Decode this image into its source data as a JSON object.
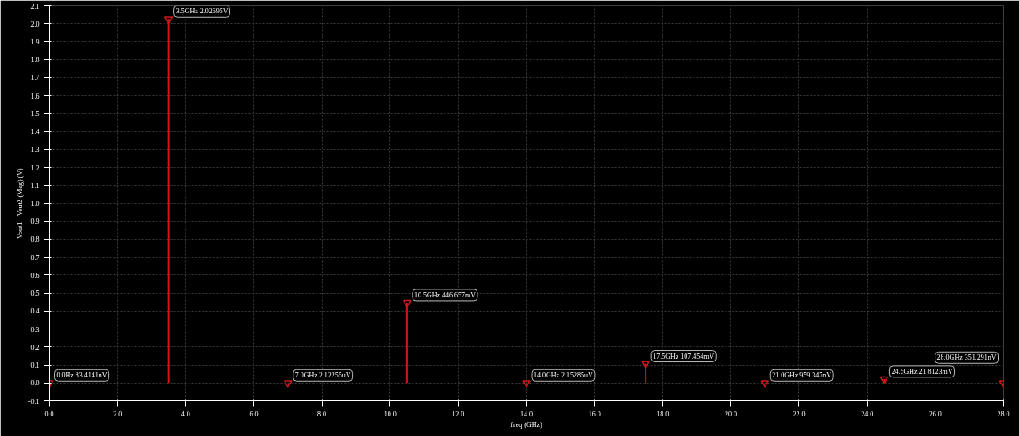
{
  "chart_data": {
    "type": "lollipop",
    "xlabel": "freq (GHz)",
    "ylabel": "Vout1 - Vout2 (Mag) (V)",
    "x": [
      0.0,
      3.5,
      7.0,
      10.5,
      14.0,
      17.5,
      21.0,
      24.5,
      28.0
    ],
    "series": [
      {
        "color": "#d01818",
        "values": [
          8.34141e-08,
          2.02695,
          2.12255e-06,
          0.446657,
          2.15285e-06,
          0.107454,
          9.59347e-07,
          0.0218123,
          3.51291e-07
        ],
        "value_labels": [
          "0.0Hz 83.4141nV",
          "3.5GHz 2.02695V",
          "7.0GHz 2.12255uV",
          "10.5GHz 446.657mV",
          "14.0GHz 2.15285uV",
          "17.5GHz 107.454mV",
          "21.0GHz 959.347nV",
          "24.5GHz 21.8123mV",
          "28.0GHz 351.291nV"
        ]
      }
    ],
    "xlim": [
      0,
      28
    ],
    "ylim": [
      -0.1,
      2.1
    ],
    "xticks": [
      {
        "value": 0,
        "label": "0.0"
      },
      {
        "value": 2,
        "label": "2.0"
      },
      {
        "value": 4,
        "label": "4.0"
      },
      {
        "value": 6,
        "label": "6.0"
      },
      {
        "value": 8,
        "label": "8.0"
      },
      {
        "value": 10,
        "label": "10.0"
      },
      {
        "value": 12,
        "label": "12.0"
      },
      {
        "value": 14,
        "label": "14.0"
      },
      {
        "value": 16,
        "label": "16.0"
      },
      {
        "value": 18,
        "label": "18.0"
      },
      {
        "value": 20,
        "label": "20.0"
      },
      {
        "value": 22,
        "label": "22.0"
      },
      {
        "value": 24,
        "label": "24.0"
      },
      {
        "value": 26,
        "label": "26.0"
      },
      {
        "value": 28,
        "label": "28.0"
      }
    ],
    "yticks": [
      -0.1,
      {
        "value": 0,
        "label": "0.0"
      },
      0.1,
      0.2,
      0.3,
      0.4,
      0.5,
      0.6,
      0.7,
      0.8,
      0.9,
      {
        "value": 1,
        "label": "1.0"
      },
      1.1,
      1.2,
      1.3,
      1.4,
      1.5,
      1.6,
      1.7,
      1.8,
      1.9,
      {
        "value": 2,
        "label": "2.0"
      },
      2.1
    ],
    "grid": true,
    "marker": "triangle"
  }
}
